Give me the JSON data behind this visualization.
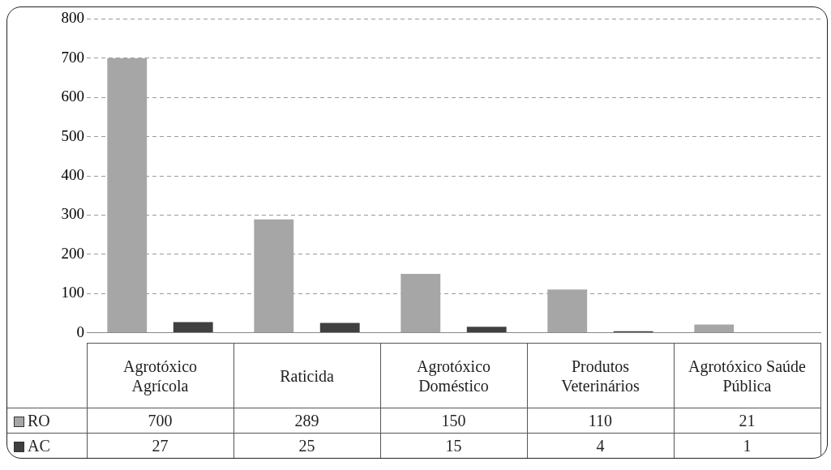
{
  "chart_data": {
    "type": "bar",
    "categories": [
      "Agrotóxico Agrícola",
      "Raticida",
      "Agrotóxico Doméstico",
      "Produtos Veterinários",
      "Agrotóxico Saúde Pública"
    ],
    "series": [
      {
        "name": "RO",
        "color": "#a6a6a6",
        "values": [
          700,
          289,
          150,
          110,
          21
        ]
      },
      {
        "name": "AC",
        "color": "#404040",
        "values": [
          27,
          25,
          15,
          4,
          1
        ]
      }
    ],
    "ylim": [
      0,
      800
    ],
    "yticks": [
      0,
      100,
      200,
      300,
      400,
      500,
      600,
      700,
      800
    ],
    "grid": "y",
    "legend": "bottom",
    "data_labels": true
  }
}
